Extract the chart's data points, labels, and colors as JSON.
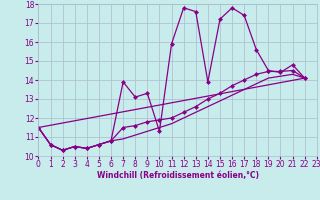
{
  "title": "",
  "xlabel": "Windchill (Refroidissement éolien,°C)",
  "bg_color": "#c8ecec",
  "line_color": "#880088",
  "grid_color": "#aabbcc",
  "xlim": [
    0,
    23
  ],
  "ylim": [
    10,
    18
  ],
  "yticks": [
    10,
    11,
    12,
    13,
    14,
    15,
    16,
    17,
    18
  ],
  "xticks": [
    0,
    1,
    2,
    3,
    4,
    5,
    6,
    7,
    8,
    9,
    10,
    11,
    12,
    13,
    14,
    15,
    16,
    17,
    18,
    19,
    20,
    21,
    22,
    23
  ],
  "line1_x": [
    0,
    1,
    2,
    3,
    4,
    5,
    6,
    7,
    8,
    9,
    10,
    11,
    12,
    13,
    14,
    15,
    16,
    17,
    18,
    19,
    20,
    21,
    22
  ],
  "line1_y": [
    11.5,
    10.6,
    10.3,
    10.5,
    10.4,
    10.6,
    10.8,
    13.9,
    13.1,
    13.3,
    11.3,
    15.9,
    17.8,
    17.6,
    13.9,
    17.2,
    17.8,
    17.4,
    15.6,
    14.5,
    14.4,
    14.8,
    14.1
  ],
  "line2_x": [
    0,
    1,
    2,
    3,
    4,
    5,
    6,
    7,
    8,
    9,
    10,
    11,
    12,
    13,
    14,
    15,
    16,
    17,
    18,
    19,
    20,
    21,
    22
  ],
  "line2_y": [
    11.5,
    10.6,
    10.3,
    10.5,
    10.4,
    10.6,
    10.8,
    11.5,
    11.6,
    11.8,
    11.9,
    12.0,
    12.3,
    12.6,
    13.0,
    13.3,
    13.7,
    14.0,
    14.3,
    14.45,
    14.45,
    14.5,
    14.1
  ],
  "line3_x": [
    0,
    22
  ],
  "line3_y": [
    11.5,
    14.1
  ],
  "line4_x": [
    0,
    1,
    2,
    3,
    4,
    5,
    6,
    7,
    8,
    9,
    10,
    11,
    12,
    13,
    14,
    15,
    16,
    17,
    18,
    19,
    20,
    21,
    22
  ],
  "line4_y": [
    11.5,
    10.6,
    10.3,
    10.5,
    10.4,
    10.6,
    10.8,
    10.9,
    11.1,
    11.3,
    11.5,
    11.7,
    12.0,
    12.3,
    12.6,
    12.9,
    13.2,
    13.5,
    13.8,
    14.1,
    14.2,
    14.3,
    14.1
  ],
  "marker_size": 2.5,
  "linewidth": 0.9
}
